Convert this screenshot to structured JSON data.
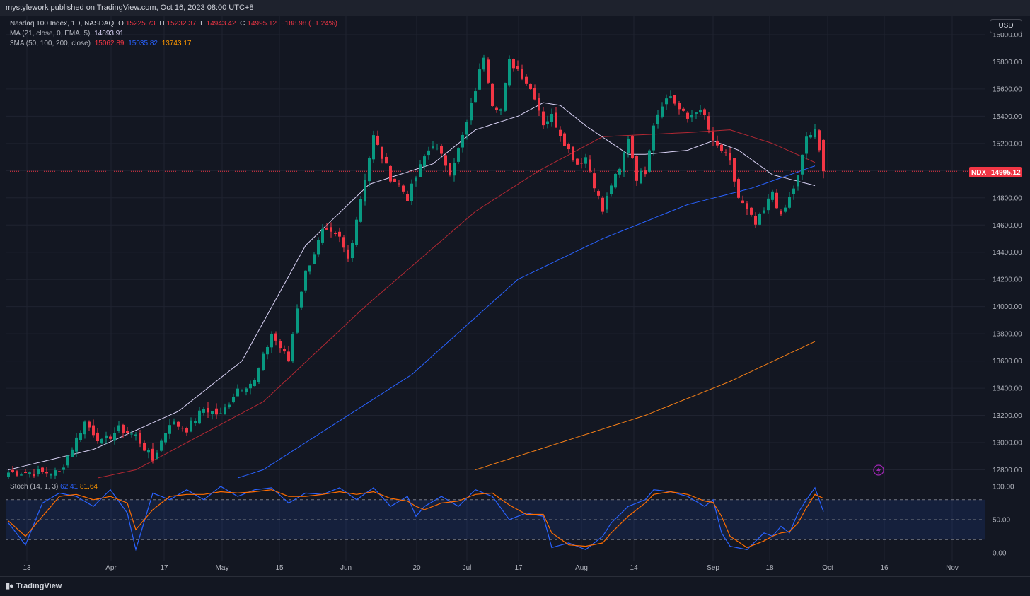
{
  "header": {
    "published": "mystylework published on TradingView.com, Oct 16, 2023 08:00 UTC+8",
    "symbol_line": "Nasdaq 100 Index, 1D, NASDAQ",
    "o_label": "O",
    "o_value": "15225.73",
    "h_label": "H",
    "h_value": "15232.37",
    "l_label": "L",
    "l_value": "14943.42",
    "c_label": "C",
    "c_value": "14995.12",
    "change": "−188.98 (−1.24%)",
    "ma_label": "MA (21, close, 0, EMA, 5)",
    "ma_value": "14893.91",
    "ma3_label": "3MA (50, 100, 200, close)",
    "ma50_value": "15062.89",
    "ma100_value": "15035.82",
    "ma200_value": "13743.17",
    "currency": "USD",
    "price_tag_symbol": "NDX",
    "price_tag_value": "14995.12"
  },
  "stoch": {
    "label": "Stoch (14, 1, 3)",
    "k_value": "62.41",
    "d_value": "81.64"
  },
  "footer": {
    "brand": "TradingView"
  },
  "colors": {
    "up": "#089981",
    "down": "#f23645",
    "ma21": "#d9d2f5",
    "ma50": "#b22833",
    "ma100": "#2962ff",
    "ma200": "#f57f17",
    "stoch_k": "#2962ff",
    "stoch_d": "#ff6d00"
  },
  "chart_data": {
    "type": "candlestick",
    "price_axis": {
      "ticks": [
        "12800.00",
        "13000.00",
        "13200.00",
        "13400.00",
        "13600.00",
        "13800.00",
        "14000.00",
        "14200.00",
        "14400.00",
        "14600.00",
        "14800.00",
        "15000.00",
        "15200.00",
        "15400.00",
        "15600.00",
        "15800.00",
        "16000.00"
      ]
    },
    "time_axis": {
      "ticks": [
        "13",
        "Apr",
        "17",
        "May",
        "15",
        "Jun",
        "20",
        "Jul",
        "17",
        "Aug",
        "14",
        "Sep",
        "18",
        "Oct",
        "16",
        "Nov"
      ]
    },
    "stoch_axis": {
      "ticks": [
        "100.00",
        "50.00",
        "0.00"
      ]
    },
    "last_close": 14995.12,
    "waypoints": [
      [
        0,
        12780
      ],
      [
        12,
        12780
      ],
      [
        18,
        13150
      ],
      [
        22,
        13000
      ],
      [
        26,
        13100
      ],
      [
        30,
        13050
      ],
      [
        34,
        12870
      ],
      [
        38,
        13150
      ],
      [
        42,
        13100
      ],
      [
        46,
        13250
      ],
      [
        50,
        13200
      ],
      [
        54,
        13400
      ],
      [
        58,
        13450
      ],
      [
        62,
        13800
      ],
      [
        64,
        13700
      ],
      [
        66,
        13600
      ],
      [
        68,
        14000
      ],
      [
        70,
        14250
      ],
      [
        72,
        14400
      ],
      [
        74,
        14550
      ],
      [
        78,
        14500
      ],
      [
        80,
        14350
      ],
      [
        82,
        14650
      ],
      [
        84,
        14950
      ],
      [
        86,
        15250
      ],
      [
        88,
        15100
      ],
      [
        90,
        14950
      ],
      [
        92,
        14900
      ],
      [
        94,
        14800
      ],
      [
        96,
        14950
      ],
      [
        98,
        15100
      ],
      [
        100,
        15200
      ],
      [
        104,
        15000
      ],
      [
        106,
        15150
      ],
      [
        108,
        15350
      ],
      [
        110,
        15600
      ],
      [
        112,
        15850
      ],
      [
        114,
        15500
      ],
      [
        116,
        15450
      ],
      [
        118,
        15800
      ],
      [
        120,
        15750
      ],
      [
        122,
        15650
      ],
      [
        124,
        15550
      ],
      [
        126,
        15350
      ],
      [
        128,
        15400
      ],
      [
        132,
        15150
      ],
      [
        134,
        15050
      ],
      [
        136,
        15100
      ],
      [
        138,
        14900
      ],
      [
        140,
        14700
      ],
      [
        142,
        14900
      ],
      [
        144,
        15000
      ],
      [
        146,
        15250
      ],
      [
        148,
        14950
      ],
      [
        150,
        15000
      ],
      [
        152,
        15350
      ],
      [
        154,
        15500
      ],
      [
        156,
        15550
      ],
      [
        158,
        15450
      ],
      [
        160,
        15380
      ],
      [
        162,
        15450
      ],
      [
        164,
        15400
      ],
      [
        166,
        15200
      ],
      [
        168,
        15150
      ],
      [
        170,
        15050
      ],
      [
        172,
        14800
      ],
      [
        174,
        14700
      ],
      [
        176,
        14600
      ],
      [
        178,
        14700
      ],
      [
        180,
        14850
      ],
      [
        182,
        14650
      ],
      [
        184,
        14800
      ],
      [
        186,
        14950
      ],
      [
        188,
        15250
      ],
      [
        190,
        15280
      ],
      [
        192,
        14995
      ]
    ],
    "ma21": [
      [
        0,
        12800
      ],
      [
        20,
        12950
      ],
      [
        40,
        13230
      ],
      [
        55,
        13600
      ],
      [
        70,
        14450
      ],
      [
        85,
        14900
      ],
      [
        100,
        15050
      ],
      [
        110,
        15300
      ],
      [
        120,
        15400
      ],
      [
        126,
        15500
      ],
      [
        130,
        15480
      ],
      [
        136,
        15330
      ],
      [
        146,
        15120
      ],
      [
        150,
        15120
      ],
      [
        160,
        15150
      ],
      [
        166,
        15220
      ],
      [
        172,
        15150
      ],
      [
        180,
        14970
      ],
      [
        190,
        14890
      ]
    ],
    "ma50": [
      [
        0,
        12600
      ],
      [
        30,
        12800
      ],
      [
        60,
        13300
      ],
      [
        84,
        14000
      ],
      [
        110,
        14700
      ],
      [
        125,
        15000
      ],
      [
        140,
        15250
      ],
      [
        160,
        15280
      ],
      [
        170,
        15300
      ],
      [
        180,
        15200
      ],
      [
        190,
        15060
      ]
    ],
    "ma100": [
      [
        0,
        12200
      ],
      [
        60,
        12800
      ],
      [
        95,
        13500
      ],
      [
        120,
        14200
      ],
      [
        140,
        14500
      ],
      [
        160,
        14750
      ],
      [
        175,
        14870
      ],
      [
        190,
        15035
      ]
    ],
    "ma200": [
      [
        110,
        12800
      ],
      [
        130,
        13000
      ],
      [
        150,
        13200
      ],
      [
        170,
        13450
      ],
      [
        190,
        13743
      ]
    ],
    "stoch_k": [
      [
        0,
        45
      ],
      [
        4,
        12
      ],
      [
        8,
        75
      ],
      [
        12,
        90
      ],
      [
        16,
        85
      ],
      [
        20,
        70
      ],
      [
        24,
        95
      ],
      [
        28,
        60
      ],
      [
        30,
        5
      ],
      [
        34,
        90
      ],
      [
        38,
        80
      ],
      [
        42,
        95
      ],
      [
        46,
        80
      ],
      [
        50,
        100
      ],
      [
        54,
        85
      ],
      [
        58,
        95
      ],
      [
        62,
        98
      ],
      [
        66,
        75
      ],
      [
        70,
        90
      ],
      [
        74,
        88
      ],
      [
        78,
        98
      ],
      [
        82,
        80
      ],
      [
        86,
        98
      ],
      [
        90,
        70
      ],
      [
        94,
        85
      ],
      [
        96,
        55
      ],
      [
        98,
        70
      ],
      [
        102,
        85
      ],
      [
        106,
        70
      ],
      [
        110,
        95
      ],
      [
        114,
        85
      ],
      [
        118,
        50
      ],
      [
        122,
        60
      ],
      [
        126,
        55
      ],
      [
        128,
        8
      ],
      [
        132,
        15
      ],
      [
        136,
        5
      ],
      [
        140,
        25
      ],
      [
        142,
        45
      ],
      [
        146,
        70
      ],
      [
        150,
        80
      ],
      [
        152,
        95
      ],
      [
        156,
        92
      ],
      [
        160,
        85
      ],
      [
        164,
        70
      ],
      [
        166,
        80
      ],
      [
        168,
        30
      ],
      [
        170,
        10
      ],
      [
        174,
        5
      ],
      [
        178,
        30
      ],
      [
        180,
        25
      ],
      [
        182,
        40
      ],
      [
        184,
        30
      ],
      [
        186,
        60
      ],
      [
        188,
        80
      ],
      [
        190,
        98
      ],
      [
        192,
        62
      ]
    ],
    "stoch_d": [
      [
        0,
        48
      ],
      [
        4,
        25
      ],
      [
        8,
        55
      ],
      [
        12,
        85
      ],
      [
        16,
        88
      ],
      [
        20,
        80
      ],
      [
        24,
        85
      ],
      [
        28,
        75
      ],
      [
        30,
        35
      ],
      [
        34,
        65
      ],
      [
        38,
        85
      ],
      [
        42,
        88
      ],
      [
        46,
        88
      ],
      [
        50,
        92
      ],
      [
        54,
        90
      ],
      [
        58,
        92
      ],
      [
        62,
        95
      ],
      [
        66,
        85
      ],
      [
        70,
        85
      ],
      [
        74,
        88
      ],
      [
        78,
        92
      ],
      [
        82,
        88
      ],
      [
        86,
        92
      ],
      [
        90,
        82
      ],
      [
        94,
        78
      ],
      [
        96,
        70
      ],
      [
        98,
        65
      ],
      [
        102,
        75
      ],
      [
        106,
        78
      ],
      [
        110,
        88
      ],
      [
        114,
        90
      ],
      [
        118,
        72
      ],
      [
        122,
        58
      ],
      [
        126,
        58
      ],
      [
        128,
        30
      ],
      [
        132,
        12
      ],
      [
        136,
        10
      ],
      [
        140,
        15
      ],
      [
        142,
        30
      ],
      [
        146,
        55
      ],
      [
        150,
        75
      ],
      [
        152,
        88
      ],
      [
        156,
        92
      ],
      [
        160,
        88
      ],
      [
        164,
        78
      ],
      [
        166,
        76
      ],
      [
        168,
        55
      ],
      [
        170,
        25
      ],
      [
        174,
        8
      ],
      [
        178,
        18
      ],
      [
        180,
        25
      ],
      [
        182,
        30
      ],
      [
        184,
        32
      ],
      [
        186,
        45
      ],
      [
        188,
        68
      ],
      [
        190,
        88
      ],
      [
        192,
        82
      ]
    ]
  }
}
